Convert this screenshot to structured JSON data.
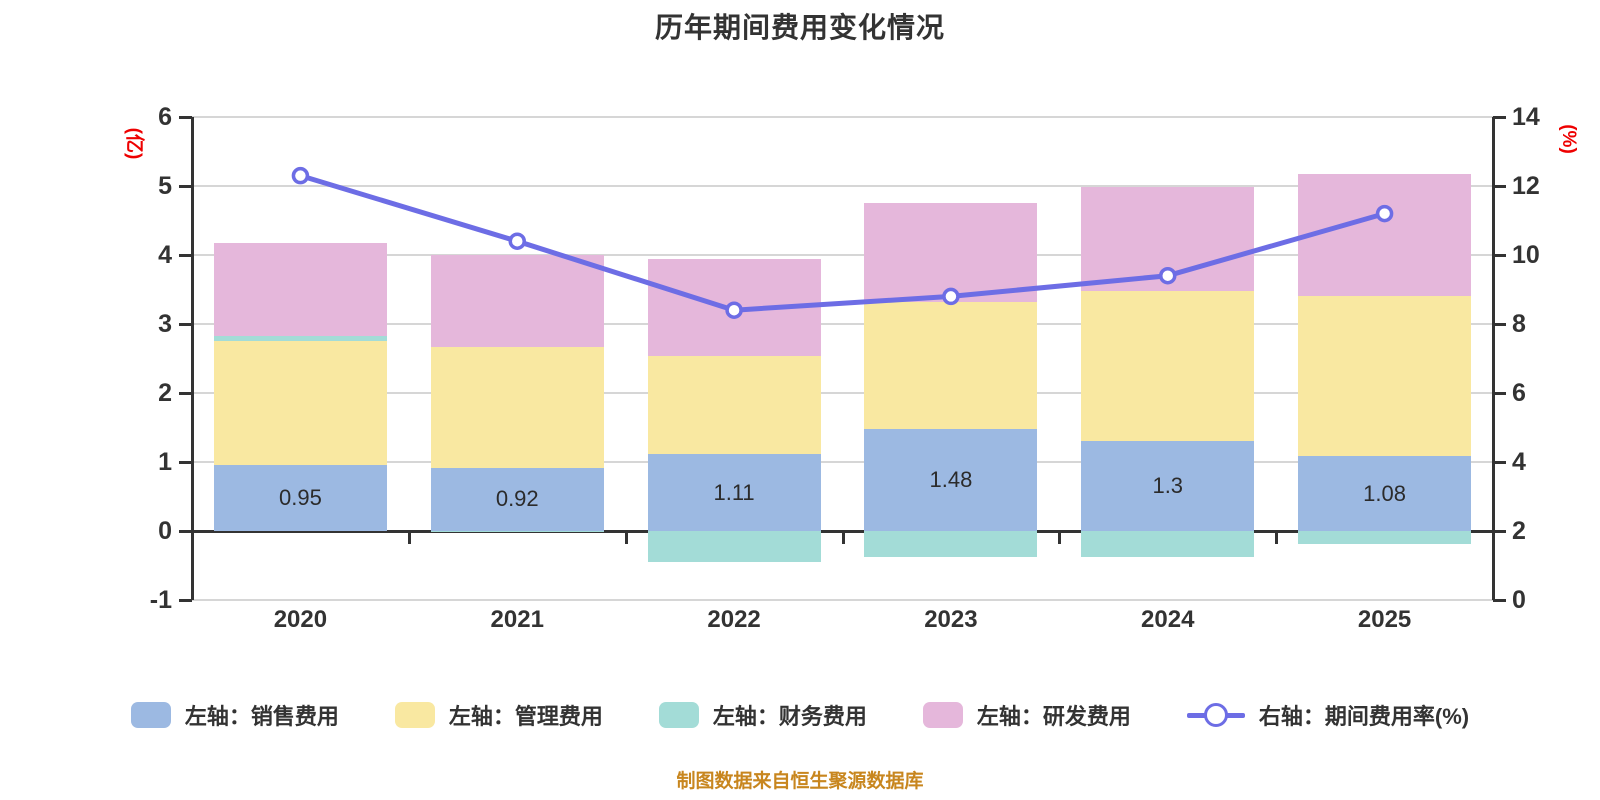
{
  "title": "历年期间费用变化情况",
  "source_note": "制图数据来自恒生聚源数据库",
  "colors": {
    "text": "#333333",
    "axis": "#333333",
    "grid": "#d6d6d6",
    "axis_name_red": "#ee0000",
    "source_note_orange": "#c8861e",
    "line": "#6d6de5",
    "marker_fill": "#ffffff",
    "bar_sales": "#9cb9e2",
    "bar_admin": "#f9e8a1",
    "bar_finance": "#a3dcd7",
    "bar_rd": "#e5b7db"
  },
  "left_axis": {
    "name": "(亿)",
    "ticks": [
      "6",
      "5",
      "4",
      "3",
      "2",
      "1",
      "0",
      "-1"
    ],
    "min": -1,
    "max": 6
  },
  "right_axis": {
    "name": "(%)",
    "ticks": [
      "14",
      "12",
      "10",
      "8",
      "6",
      "4",
      "2",
      "0"
    ],
    "min": 0,
    "max": 14
  },
  "chart_data": {
    "type": "bar",
    "stacked": true,
    "grid": true,
    "legend_position": "bottom",
    "categories": [
      "2020",
      "2021",
      "2022",
      "2023",
      "2024",
      "2025"
    ],
    "series": [
      {
        "name": "左轴：销售费用",
        "type": "bar",
        "color_key": "bar_sales",
        "values": [
          0.95,
          0.92,
          1.11,
          1.48,
          1.3,
          1.08
        ],
        "data_labels": [
          "0.95",
          "0.92",
          "1.11",
          "1.48",
          "1.3",
          "1.08"
        ]
      },
      {
        "name": "左轴：管理费用",
        "type": "bar",
        "color_key": "bar_admin",
        "values": [
          1.81,
          1.75,
          1.43,
          1.84,
          2.18,
          2.32
        ]
      },
      {
        "name": "左轴：财务费用",
        "type": "bar",
        "color_key": "bar_finance",
        "values": [
          0.06,
          -0.02,
          -0.45,
          -0.38,
          -0.38,
          -0.19
        ]
      },
      {
        "name": "左轴：研发费用",
        "type": "bar",
        "color_key": "bar_rd",
        "values": [
          1.36,
          1.33,
          1.4,
          1.43,
          1.51,
          1.77
        ]
      },
      {
        "name": "右轴：期间费用率(%)",
        "type": "line",
        "axis": "right",
        "color_key": "line",
        "values": [
          12.3,
          10.4,
          8.4,
          8.8,
          9.4,
          11.2
        ]
      }
    ]
  },
  "legend": {
    "items": [
      {
        "label": "左轴：销售费用",
        "swatch": "bar_sales",
        "type": "bar"
      },
      {
        "label": "左轴：管理费用",
        "swatch": "bar_admin",
        "type": "bar"
      },
      {
        "label": "左轴：财务费用",
        "swatch": "bar_finance",
        "type": "bar"
      },
      {
        "label": "左轴：研发费用",
        "swatch": "bar_rd",
        "type": "bar"
      },
      {
        "label": "右轴：期间费用率(%)",
        "swatch": "line",
        "type": "line"
      }
    ]
  }
}
